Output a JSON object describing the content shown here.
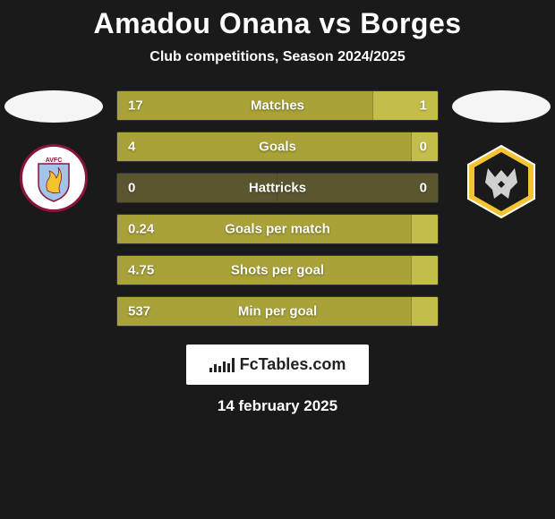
{
  "title": "Amadou Onana vs Borges",
  "subtitle": "Club competitions, Season 2024/2025",
  "brand": "FcTables.com",
  "date": "14 february 2025",
  "colors": {
    "bar_left": "#a8a238",
    "bar_right": "#c4bd4a",
    "bar_empty": "#5a5730",
    "background": "#1a1a1a",
    "ellipse": "#f5f5f5"
  },
  "stats": [
    {
      "label": "Matches",
      "left_val": "17",
      "right_val": "1",
      "left_pct": 80,
      "right_pct": 20
    },
    {
      "label": "Goals",
      "left_val": "4",
      "right_val": "0",
      "left_pct": 92,
      "right_pct": 8
    },
    {
      "label": "Hattricks",
      "left_val": "0",
      "right_val": "0",
      "left_pct": 50,
      "right_pct": 50,
      "empty_left": true,
      "empty_right": true
    },
    {
      "label": "Goals per match",
      "left_val": "0.24",
      "right_val": "",
      "left_pct": 92,
      "right_pct": 8
    },
    {
      "label": "Shots per goal",
      "left_val": "4.75",
      "right_val": "",
      "left_pct": 92,
      "right_pct": 8
    },
    {
      "label": "Min per goal",
      "left_val": "537",
      "right_val": "",
      "left_pct": 92,
      "right_pct": 8
    }
  ],
  "teams": {
    "left": {
      "name": "aston-villa"
    },
    "right": {
      "name": "wolves"
    }
  }
}
